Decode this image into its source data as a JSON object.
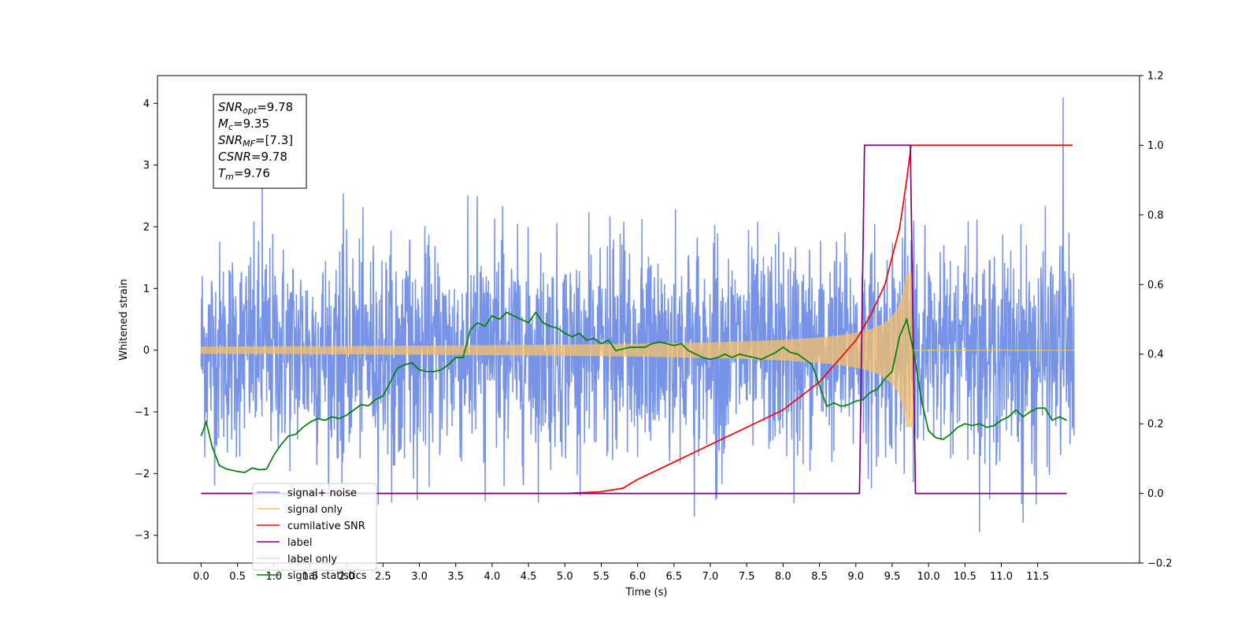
{
  "chart_data": {
    "type": "line",
    "xlabel": "Time (s)",
    "ylabel_left": "Whitened strain",
    "ylabel_right": "",
    "xlim": [
      -0.6,
      12.9
    ],
    "ylim_left": [
      -3.45,
      4.45
    ],
    "ylim_right": [
      -0.2,
      1.2
    ],
    "x_ticks": [
      "0.0",
      "0.5",
      "1.0",
      "1.5",
      "2.0",
      "2.5",
      "3.0",
      "3.5",
      "4.0",
      "4.5",
      "5.0",
      "5.5",
      "6.0",
      "6.5",
      "7.0",
      "7.5",
      "8.0",
      "8.5",
      "9.0",
      "9.5",
      "10.0",
      "10.5",
      "11.0",
      "11.5"
    ],
    "y_left_ticks": [
      "4",
      "3",
      "2",
      "1",
      "0",
      "−1",
      "−2",
      "−3"
    ],
    "y_right_ticks": [
      "1.2",
      "1.0",
      "0.8",
      "0.6",
      "0.4",
      "0.2",
      "0.0",
      "−0.2"
    ],
    "grid": false,
    "legend_position": "lower-left",
    "annotation": {
      "lines": [
        {
          "sym": "SNR",
          "sub": "opt",
          "value": "=9.78"
        },
        {
          "sym": "M",
          "sub": "c",
          "value": "=9.35"
        },
        {
          "sym": "SNR",
          "sub": "MF",
          "value": "=[7.3]"
        },
        {
          "sym": "CSNR",
          "sub": "",
          "value": "=9.78"
        },
        {
          "sym": "T",
          "sub": "m",
          "value": "=9.76"
        }
      ]
    },
    "series": [
      {
        "name": "signal+ noise",
        "axis": "left",
        "color": "#6f8de6",
        "style": "noise",
        "t_range": [
          0.0,
          12.0
        ],
        "std": 0.85,
        "peaks": [
          [
            0.84,
            2.85
          ],
          [
            11.85,
            4.1
          ],
          [
            10.7,
            -2.95
          ],
          [
            6.78,
            -2.7
          ],
          [
            8.15,
            -2.48
          ],
          [
            11.48,
            -2.5
          ],
          [
            11.3,
            -2.8
          ]
        ]
      },
      {
        "name": "signal only",
        "axis": "left",
        "color": "#f7c06a",
        "style": "chirp",
        "t_range": [
          0.0,
          12.0
        ],
        "merger_time": 9.76,
        "peak_amplitude": 1.25
      },
      {
        "name": "cumilative SNR",
        "axis": "right",
        "color": "#ff0000",
        "points": [
          [
            0.0,
            0.0
          ],
          [
            5.0,
            0.0
          ],
          [
            5.5,
            0.005
          ],
          [
            5.8,
            0.015
          ],
          [
            6.0,
            0.04
          ],
          [
            6.5,
            0.09
          ],
          [
            7.0,
            0.14
          ],
          [
            7.5,
            0.19
          ],
          [
            8.0,
            0.24
          ],
          [
            8.5,
            0.32
          ],
          [
            9.0,
            0.44
          ],
          [
            9.2,
            0.51
          ],
          [
            9.4,
            0.6
          ],
          [
            9.6,
            0.76
          ],
          [
            9.7,
            0.9
          ],
          [
            9.76,
            1.0
          ],
          [
            11.98,
            1.0
          ]
        ]
      },
      {
        "name": "label",
        "axis": "right",
        "color": "#800080",
        "points": [
          [
            0.0,
            0.0
          ],
          [
            9.05,
            0.0
          ],
          [
            9.12,
            1.0
          ],
          [
            9.75,
            1.0
          ],
          [
            9.82,
            0.0
          ],
          [
            11.9,
            0.0
          ]
        ]
      },
      {
        "name": "label only",
        "axis": "right",
        "color": "#dddddd",
        "points": []
      },
      {
        "name": "signal statistics",
        "axis": "right",
        "color": "#008000",
        "points": [
          [
            0.0,
            0.165
          ],
          [
            0.07,
            0.205
          ],
          [
            0.15,
            0.135
          ],
          [
            0.25,
            0.08
          ],
          [
            0.35,
            0.07
          ],
          [
            0.5,
            0.063
          ],
          [
            0.6,
            0.06
          ],
          [
            0.7,
            0.073
          ],
          [
            0.8,
            0.068
          ],
          [
            0.9,
            0.07
          ],
          [
            1.0,
            0.11
          ],
          [
            1.1,
            0.14
          ],
          [
            1.2,
            0.165
          ],
          [
            1.3,
            0.17
          ],
          [
            1.4,
            0.19
          ],
          [
            1.5,
            0.205
          ],
          [
            1.6,
            0.215
          ],
          [
            1.7,
            0.21
          ],
          [
            1.8,
            0.22
          ],
          [
            1.9,
            0.215
          ],
          [
            2.0,
            0.225
          ],
          [
            2.1,
            0.24
          ],
          [
            2.2,
            0.255
          ],
          [
            2.3,
            0.252
          ],
          [
            2.4,
            0.27
          ],
          [
            2.5,
            0.28
          ],
          [
            2.6,
            0.32
          ],
          [
            2.7,
            0.36
          ],
          [
            2.8,
            0.37
          ],
          [
            2.9,
            0.375
          ],
          [
            3.0,
            0.355
          ],
          [
            3.1,
            0.35
          ],
          [
            3.2,
            0.35
          ],
          [
            3.3,
            0.355
          ],
          [
            3.4,
            0.37
          ],
          [
            3.5,
            0.39
          ],
          [
            3.6,
            0.39
          ],
          [
            3.7,
            0.47
          ],
          [
            3.8,
            0.49
          ],
          [
            3.9,
            0.48
          ],
          [
            4.0,
            0.51
          ],
          [
            4.1,
            0.5
          ],
          [
            4.2,
            0.52
          ],
          [
            4.3,
            0.51
          ],
          [
            4.4,
            0.5
          ],
          [
            4.5,
            0.49
          ],
          [
            4.6,
            0.52
          ],
          [
            4.7,
            0.49
          ],
          [
            4.8,
            0.48
          ],
          [
            4.9,
            0.475
          ],
          [
            5.0,
            0.46
          ],
          [
            5.1,
            0.45
          ],
          [
            5.2,
            0.46
          ],
          [
            5.3,
            0.44
          ],
          [
            5.4,
            0.445
          ],
          [
            5.5,
            0.43
          ],
          [
            5.6,
            0.44
          ],
          [
            5.7,
            0.41
          ],
          [
            5.8,
            0.415
          ],
          [
            5.9,
            0.42
          ],
          [
            6.0,
            0.42
          ],
          [
            6.1,
            0.42
          ],
          [
            6.2,
            0.43
          ],
          [
            6.3,
            0.435
          ],
          [
            6.4,
            0.43
          ],
          [
            6.5,
            0.425
          ],
          [
            6.6,
            0.43
          ],
          [
            6.7,
            0.41
          ],
          [
            6.8,
            0.4
          ],
          [
            6.9,
            0.39
          ],
          [
            7.0,
            0.385
          ],
          [
            7.1,
            0.39
          ],
          [
            7.2,
            0.4
          ],
          [
            7.3,
            0.39
          ],
          [
            7.4,
            0.4
          ],
          [
            7.5,
            0.395
          ],
          [
            7.6,
            0.39
          ],
          [
            7.7,
            0.385
          ],
          [
            7.8,
            0.395
          ],
          [
            7.9,
            0.405
          ],
          [
            8.0,
            0.42
          ],
          [
            8.1,
            0.405
          ],
          [
            8.2,
            0.4
          ],
          [
            8.3,
            0.385
          ],
          [
            8.4,
            0.37
          ],
          [
            8.5,
            0.31
          ],
          [
            8.6,
            0.25
          ],
          [
            8.7,
            0.26
          ],
          [
            8.8,
            0.25
          ],
          [
            8.9,
            0.255
          ],
          [
            9.0,
            0.265
          ],
          [
            9.1,
            0.27
          ],
          [
            9.2,
            0.29
          ],
          [
            9.3,
            0.3
          ],
          [
            9.4,
            0.33
          ],
          [
            9.5,
            0.35
          ],
          [
            9.6,
            0.45
          ],
          [
            9.7,
            0.5
          ],
          [
            9.8,
            0.4
          ],
          [
            9.9,
            0.27
          ],
          [
            10.0,
            0.18
          ],
          [
            10.1,
            0.16
          ],
          [
            10.2,
            0.155
          ],
          [
            10.3,
            0.17
          ],
          [
            10.4,
            0.19
          ],
          [
            10.5,
            0.2
          ],
          [
            10.6,
            0.195
          ],
          [
            10.7,
            0.2
          ],
          [
            10.8,
            0.19
          ],
          [
            10.9,
            0.195
          ],
          [
            11.0,
            0.21
          ],
          [
            11.1,
            0.22
          ],
          [
            11.2,
            0.24
          ],
          [
            11.3,
            0.22
          ],
          [
            11.4,
            0.235
          ],
          [
            11.5,
            0.245
          ],
          [
            11.6,
            0.245
          ],
          [
            11.7,
            0.21
          ],
          [
            11.8,
            0.22
          ],
          [
            11.9,
            0.21
          ]
        ]
      }
    ]
  }
}
